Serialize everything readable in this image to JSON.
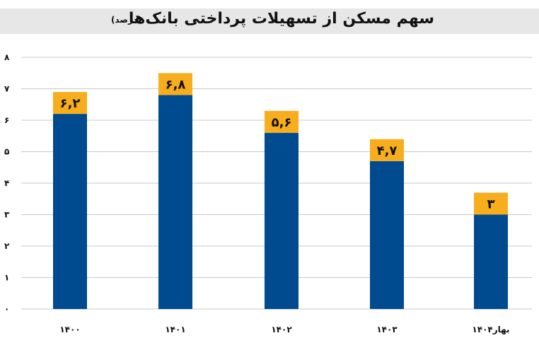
{
  "chart_data": {
    "type": "bar",
    "title": "سهم مسکن از تسهیلات پرداختی بانک‌ها",
    "subtitle": "(درصد)",
    "categories": [
      "۱۴۰۰",
      "۱۴۰۱",
      "۱۴۰۲",
      "۱۴۰۳",
      "بهار۱۴۰۴"
    ],
    "values": [
      6.2,
      6.8,
      5.6,
      4.7,
      3
    ],
    "value_labels": [
      "۶,۲",
      "۶,۸",
      "۵,۶",
      "۴,۷",
      "۳"
    ],
    "y_ticks": [
      0,
      1,
      2,
      3,
      4,
      5,
      6,
      7,
      8
    ],
    "y_tick_labels": [
      "۰",
      "۱",
      "۲",
      "۳",
      "۴",
      "۵",
      "۶",
      "۷",
      "۸"
    ],
    "ylim": [
      0,
      8
    ],
    "grid": true,
    "legend": "none",
    "colors": {
      "bar": "#004a8f",
      "label_box": "#f7ad1c",
      "grid": "#c8c8c8"
    }
  }
}
